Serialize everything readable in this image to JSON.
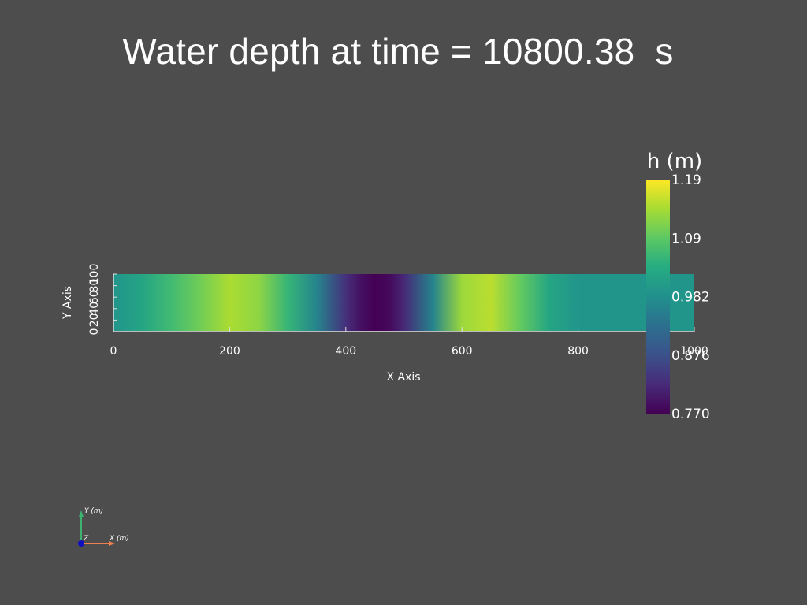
{
  "title": "Water depth at time = 10800.38  s",
  "x_axis": {
    "label": "X Axis",
    "ticks": [
      "0",
      "200",
      "400",
      "600",
      "800",
      "1000"
    ]
  },
  "y_axis": {
    "label": "Y Axis",
    "ticks": [
      "0",
      "20",
      "40",
      "60",
      "80",
      "100"
    ]
  },
  "colorbar": {
    "title": "h (m)",
    "ticks": [
      "1.19",
      "1.09",
      "0.982",
      "0.876",
      "0.770"
    ],
    "colormap": "viridis"
  },
  "orientation": {
    "y_label": "Y (m)",
    "x_label": "X (m)",
    "z_label": "Z",
    "x_color": "#f08050",
    "y_color": "#3cb371",
    "z_color": "#1010c0"
  },
  "chart_data": {
    "type": "heatmap",
    "title": "Water depth at time = 10800.38  s",
    "xlabel": "X Axis",
    "ylabel": "Y Axis",
    "xlim": [
      0,
      1000
    ],
    "ylim": [
      0,
      100
    ],
    "colorbar_label": "h (m)",
    "value_range": [
      0.77,
      1.19
    ],
    "x": [
      0,
      50,
      100,
      150,
      200,
      250,
      300,
      350,
      400,
      425,
      450,
      475,
      500,
      550,
      600,
      650,
      700,
      750,
      800,
      900,
      1000
    ],
    "h": [
      0.99,
      1.02,
      1.06,
      1.1,
      1.14,
      1.12,
      1.05,
      0.96,
      0.83,
      0.79,
      0.77,
      0.78,
      0.82,
      0.96,
      1.13,
      1.15,
      1.09,
      1.02,
      0.99,
      0.99,
      0.99
    ]
  }
}
